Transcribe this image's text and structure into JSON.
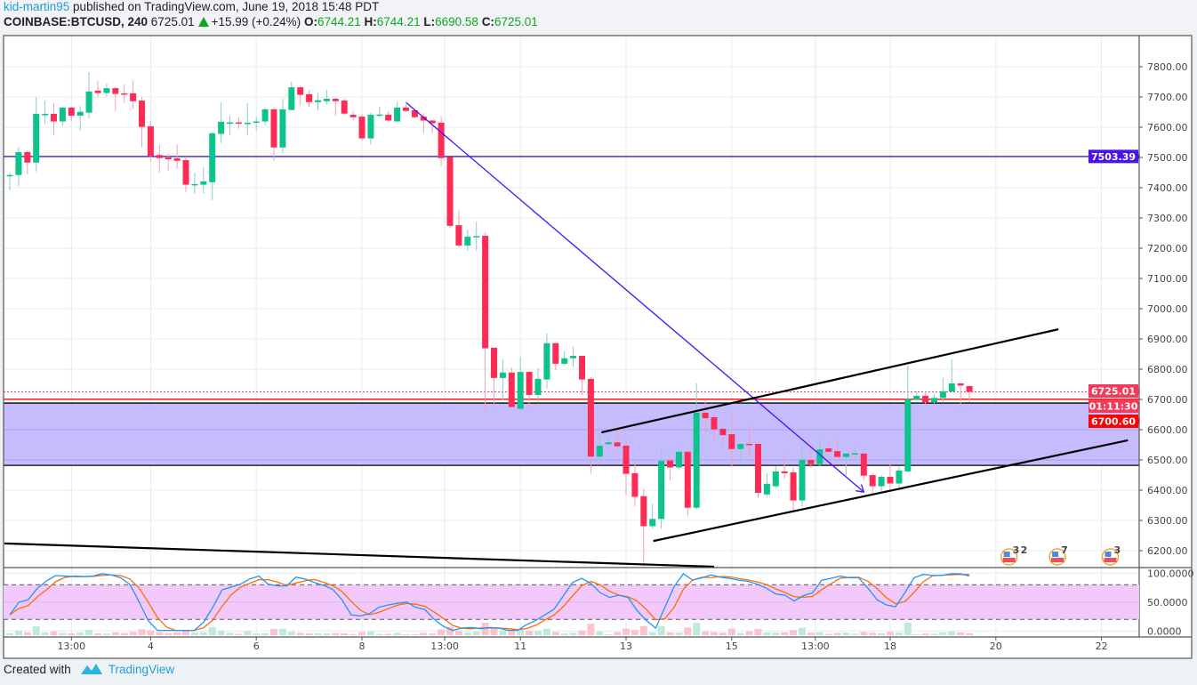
{
  "header": {
    "author": "kid-martin95",
    "published": "published on TradingView.com, June 19, 2018 15:48 PDT",
    "symbol": "COINBASE:BTCUSD, 240",
    "last": "6725.01",
    "change": "+15.99 (+0.24%)",
    "o_label": "O:",
    "o": "6744.21",
    "h_label": "H:",
    "h": "6744.21",
    "l_label": "L:",
    "l": "6690.58",
    "c_label": "C:",
    "c": "6725.01"
  },
  "footer": {
    "created_with": "Created with",
    "brand": "TradingView"
  },
  "colors": {
    "up": "#0cc48b",
    "down": "#fe2b54",
    "up_wick": "#8fcbc8",
    "down_wick": "#f5a0b0",
    "zone": "#c4bcfc",
    "stoch_band": "#f3c9fb",
    "k_line": "#2196f3",
    "d_line": "#ff6d00",
    "trend": "#4410ff"
  },
  "chart_data": {
    "type": "candlestick",
    "title": "COINBASE:BTCUSD, 240",
    "ylim": [
      6130,
      7880
    ],
    "price_ticks": [
      "6200.00",
      "6300.00",
      "6400.00",
      "6500.00",
      "6600.00",
      "6700.00",
      "6800.00",
      "6900.00",
      "7000.00",
      "7100.00",
      "7200.00",
      "7300.00",
      "7400.00",
      "7500.00",
      "7600.00",
      "7700.00",
      "7800.00"
    ],
    "time_ticks": [
      {
        "label": "13:00",
        "bar": 7
      },
      {
        "label": "4",
        "bar": 16
      },
      {
        "label": "6",
        "bar": 28
      },
      {
        "label": "8",
        "bar": 40
      },
      {
        "label": "13:00",
        "bar": 49.4
      },
      {
        "label": "11",
        "bar": 58
      },
      {
        "label": "13",
        "bar": 70
      },
      {
        "label": "15",
        "bar": 82
      },
      {
        "label": "13:00",
        "bar": 91.5
      },
      {
        "label": "18",
        "bar": 100
      },
      {
        "label": "20",
        "bar": 112
      },
      {
        "label": "22",
        "bar": 124
      }
    ],
    "ohlc": [
      [
        7440,
        7450,
        7391,
        7442
      ],
      [
        7442,
        7535,
        7406,
        7518
      ],
      [
        7518,
        7524,
        7444,
        7483
      ],
      [
        7483,
        7700,
        7454,
        7644
      ],
      [
        7642,
        7688,
        7609,
        7644
      ],
      [
        7644,
        7680,
        7574,
        7619
      ],
      [
        7619,
        7667,
        7604,
        7665
      ],
      [
        7665,
        7668,
        7619,
        7638
      ],
      [
        7638,
        7670,
        7589,
        7651
      ],
      [
        7648,
        7782,
        7630,
        7718
      ],
      [
        7721,
        7753,
        7700,
        7713
      ],
      [
        7713,
        7744,
        7700,
        7729
      ],
      [
        7729,
        7733,
        7653,
        7710
      ],
      [
        7712,
        7741,
        7680,
        7711
      ],
      [
        7712,
        7753,
        7660,
        7686
      ],
      [
        7688,
        7700,
        7535,
        7601
      ],
      [
        7603,
        7621,
        7486,
        7505
      ],
      [
        7508,
        7541,
        7450,
        7498
      ],
      [
        7500,
        7512,
        7456,
        7494
      ],
      [
        7497,
        7544,
        7464,
        7489
      ],
      [
        7491,
        7503,
        7386,
        7410
      ],
      [
        7410,
        7450,
        7380,
        7412
      ],
      [
        7410,
        7468,
        7380,
        7421
      ],
      [
        7418,
        7583,
        7359,
        7580
      ],
      [
        7578,
        7682,
        7548,
        7618
      ],
      [
        7615,
        7638,
        7572,
        7616
      ],
      [
        7616,
        7632,
        7595,
        7614
      ],
      [
        7612,
        7680,
        7572,
        7615
      ],
      [
        7615,
        7635,
        7589,
        7619
      ],
      [
        7619,
        7665,
        7607,
        7659
      ],
      [
        7659,
        7665,
        7489,
        7533
      ],
      [
        7533,
        7694,
        7513,
        7659
      ],
      [
        7657,
        7750,
        7655,
        7732
      ],
      [
        7732,
        7737,
        7672,
        7707
      ],
      [
        7709,
        7723,
        7668,
        7683
      ],
      [
        7683,
        7716,
        7657,
        7689
      ],
      [
        7686,
        7723,
        7675,
        7694
      ],
      [
        7694,
        7697,
        7638,
        7686
      ],
      [
        7688,
        7694,
        7641,
        7645
      ],
      [
        7641,
        7653,
        7622,
        7633
      ],
      [
        7635,
        7644,
        7555,
        7563
      ],
      [
        7563,
        7648,
        7543,
        7641
      ],
      [
        7640,
        7668,
        7633,
        7642
      ],
      [
        7641,
        7653,
        7616,
        7622
      ],
      [
        7619,
        7685,
        7619,
        7665
      ],
      [
        7665,
        7676,
        7650,
        7654
      ],
      [
        7656,
        7656,
        7630,
        7633
      ],
      [
        7635,
        7647,
        7580,
        7622
      ],
      [
        7622,
        7625,
        7580,
        7613
      ],
      [
        7615,
        7635,
        7472,
        7498
      ],
      [
        7501,
        7501,
        7268,
        7274
      ],
      [
        7276,
        7325,
        7204,
        7209
      ],
      [
        7209,
        7262,
        7192,
        7238
      ],
      [
        7238,
        7288,
        7192,
        7240
      ],
      [
        7241,
        7251,
        6658,
        6869
      ],
      [
        6871,
        6871,
        6678,
        6771
      ],
      [
        6771,
        6833,
        6699,
        6789
      ],
      [
        6789,
        6806,
        6670,
        6675
      ],
      [
        6669,
        6841,
        6665,
        6791
      ],
      [
        6791,
        6791,
        6675,
        6715
      ],
      [
        6715,
        6803,
        6689,
        6768
      ],
      [
        6766,
        6918,
        6736,
        6886
      ],
      [
        6886,
        6886,
        6797,
        6818
      ],
      [
        6818,
        6859,
        6812,
        6836
      ],
      [
        6836,
        6874,
        6809,
        6844
      ],
      [
        6844,
        6844,
        6715,
        6766
      ],
      [
        6768,
        6774,
        6454,
        6511
      ],
      [
        6511,
        6587,
        6487,
        6547
      ],
      [
        6552,
        6575,
        6550,
        6558
      ],
      [
        6558,
        6621,
        6534,
        6545
      ],
      [
        6547,
        6569,
        6384,
        6454
      ],
      [
        6456,
        6492,
        6346,
        6378
      ],
      [
        6380,
        6404,
        6149,
        6281
      ],
      [
        6281,
        6354,
        6272,
        6305
      ],
      [
        6305,
        6533,
        6273,
        6497
      ],
      [
        6498,
        6513,
        6433,
        6475
      ],
      [
        6475,
        6544,
        6469,
        6527
      ],
      [
        6527,
        6527,
        6313,
        6342
      ],
      [
        6342,
        6753,
        6336,
        6656
      ],
      [
        6656,
        6697,
        6594,
        6638
      ],
      [
        6641,
        6653,
        6565,
        6601
      ],
      [
        6603,
        6618,
        6547,
        6582
      ],
      [
        6585,
        6662,
        6477,
        6536
      ],
      [
        6536,
        6553,
        6492,
        6553
      ],
      [
        6553,
        6621,
        6513,
        6552
      ],
      [
        6553,
        6553,
        6375,
        6391
      ],
      [
        6386,
        6456,
        6380,
        6421
      ],
      [
        6413,
        6480,
        6408,
        6462
      ],
      [
        6462,
        6519,
        6439,
        6456
      ],
      [
        6459,
        6475,
        6333,
        6366
      ],
      [
        6366,
        6550,
        6345,
        6501
      ],
      [
        6500,
        6547,
        6475,
        6486
      ],
      [
        6486,
        6565,
        6480,
        6535
      ],
      [
        6538,
        6550,
        6513,
        6527
      ],
      [
        6529,
        6574,
        6510,
        6510
      ],
      [
        6510,
        6521,
        6448,
        6521
      ],
      [
        6520,
        6544,
        6501,
        6522
      ],
      [
        6521,
        6521,
        6432,
        6448
      ],
      [
        6450,
        6457,
        6388,
        6413
      ],
      [
        6413,
        6449,
        6395,
        6444
      ],
      [
        6444,
        6494,
        6401,
        6422
      ],
      [
        6422,
        6478,
        6406,
        6465
      ],
      [
        6462,
        6812,
        6459,
        6701
      ],
      [
        6699,
        6726,
        6697,
        6712
      ],
      [
        6712,
        6726,
        6681,
        6691
      ],
      [
        6691,
        6718,
        6680,
        6705
      ],
      [
        6705,
        6770,
        6689,
        6727
      ],
      [
        6726,
        6832,
        6726,
        6753
      ],
      [
        6753,
        6753,
        6675,
        6746
      ],
      [
        6744.21,
        6744.21,
        6690.58,
        6725.01
      ]
    ],
    "horizontal_lines": [
      {
        "name": "resistance-line",
        "price": 7503.39,
        "label": "7503.39",
        "color": "#2a10d8",
        "tag_bg": "#4a14e8"
      }
    ],
    "price_tags": [
      {
        "name": "last-price-tag",
        "price": 6725.01,
        "label": "6725.01",
        "bg": "#f23a5b",
        "line": "dotted"
      },
      {
        "name": "countdown-tag",
        "price": 6703.5,
        "label": "01:11:30",
        "bg": "#f23a5b",
        "line": "none"
      },
      {
        "name": "level-tag",
        "price": 6700.6,
        "label": "6700.60",
        "bg": "#ff0000",
        "line": "solid"
      }
    ],
    "zone": {
      "top": 6688,
      "bottom": 6482
    },
    "trendlines": [
      {
        "name": "downtrend-arrow",
        "from": [
          45,
          7682
        ],
        "to": [
          97,
          6394
        ],
        "color": "#4410ff",
        "arrow": true
      },
      {
        "name": "channel-upper-line",
        "from": [
          67.2,
          6591
        ],
        "to": [
          119.1,
          6932
        ],
        "color": "#000000"
      },
      {
        "name": "channel-lower-line",
        "from": [
          73.1,
          6232
        ],
        "to": [
          127,
          6565
        ],
        "color": "#000000"
      },
      {
        "name": "long-support-line",
        "from": [
          -0.6,
          6224
        ],
        "to": [
          80,
          6147
        ],
        "color": "#000000"
      }
    ],
    "events": [
      {
        "bar": 113.5,
        "count": "3",
        "count2": "2"
      },
      {
        "bar": 119,
        "count": "7"
      },
      {
        "bar": 125,
        "count": "3"
      }
    ],
    "stochastic": {
      "ylim": [
        0,
        100
      ],
      "ticks": [
        "100.0000",
        "50.0000",
        "0.0000"
      ],
      "band": [
        20,
        80
      ],
      "d_period": 3,
      "k": [
        28,
        50,
        54,
        74,
        87,
        96,
        95,
        94,
        94,
        95,
        99,
        97,
        92,
        81,
        51,
        18,
        1,
        1,
        1,
        1,
        1,
        15,
        41,
        71,
        76,
        81,
        90,
        95,
        81,
        78,
        78,
        93,
        90,
        84,
        79,
        72,
        54,
        28,
        26,
        30,
        41,
        45,
        48,
        50,
        41,
        37,
        20,
        8,
        1,
        5,
        6,
        4,
        6,
        5,
        1,
        1,
        11,
        18,
        28,
        38,
        61,
        84,
        91,
        82,
        66,
        58,
        62,
        58,
        35,
        18,
        5,
        41,
        77,
        99,
        88,
        92,
        97,
        93,
        91,
        88,
        86,
        81,
        74,
        64,
        62,
        52,
        61,
        66,
        88,
        91,
        95,
        92,
        92,
        74,
        54,
        45,
        42,
        66,
        92,
        98,
        96,
        96,
        99,
        99,
        95
      ]
    }
  }
}
